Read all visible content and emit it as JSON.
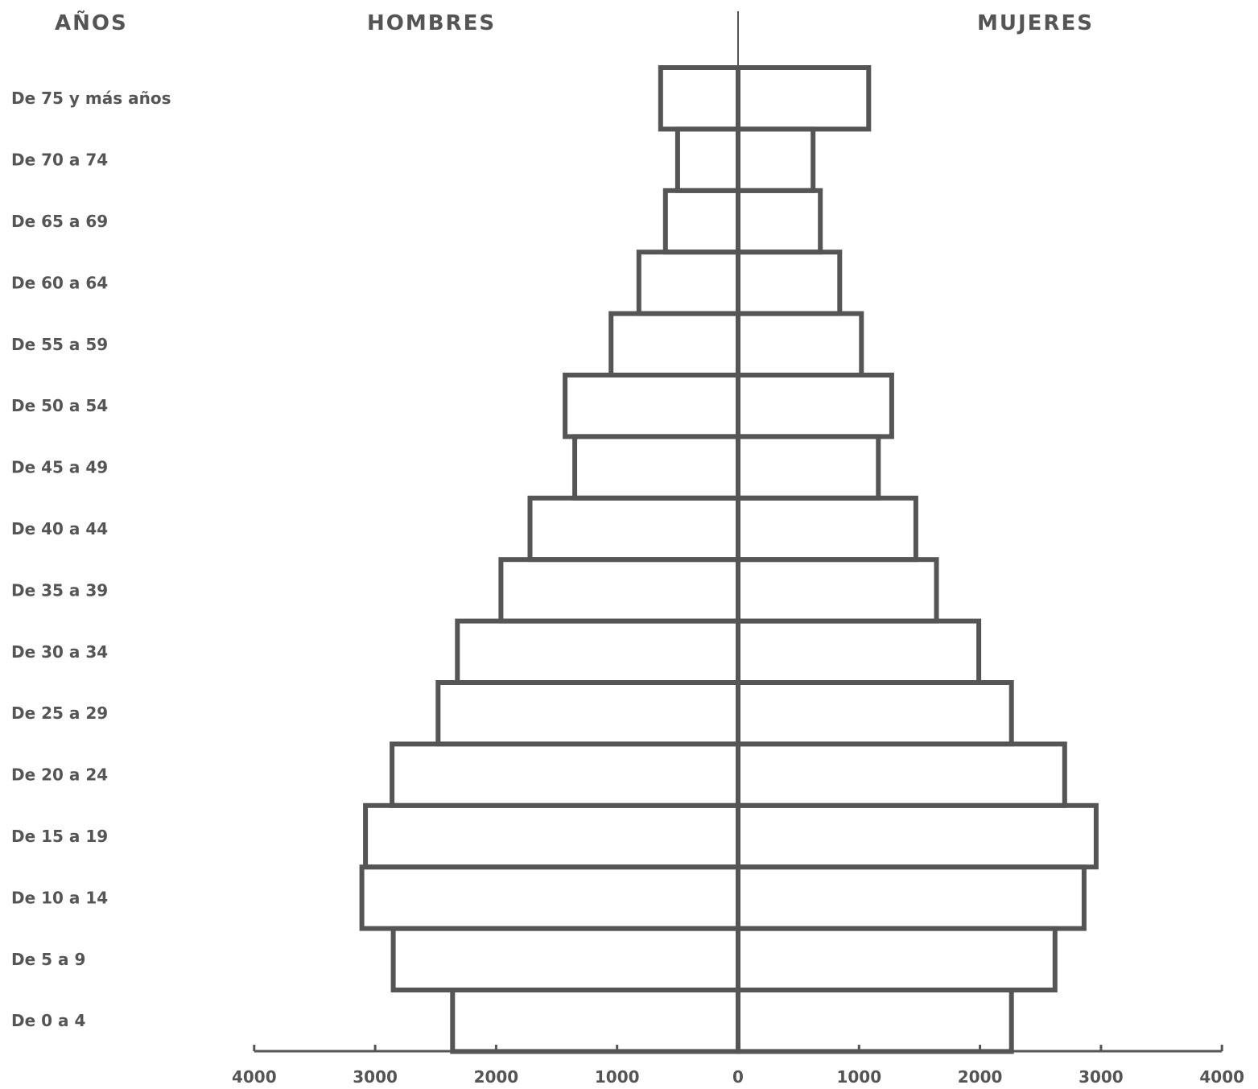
{
  "headers": {
    "age": "AÑOS",
    "men": "HOMBRES",
    "women": "MUJERES"
  },
  "colors": {
    "ink": "#555555",
    "background": "#ffffff"
  },
  "chart_data": {
    "type": "bar",
    "orientation": "horizontal",
    "subtype": "population-pyramid",
    "categories": [
      "De 75 y más años",
      "De 70 a 74",
      "De 65 a 69",
      "De 60 a 64",
      "De 55 a 59",
      "De 50 a 54",
      "De 45 a 49",
      "De 40 a 44",
      "De 35 a 39",
      "De 30 a 34",
      "De 25 a 29",
      "De 20 a 24",
      "De 15 a 19",
      "De 10 a 14",
      "De 5 a 9",
      "De 0 a 4"
    ],
    "series": [
      {
        "name": "HOMBRES",
        "side": "left",
        "values": [
          640,
          500,
          600,
          820,
          1050,
          1430,
          1350,
          1720,
          1960,
          2320,
          2480,
          2860,
          3080,
          3110,
          2850,
          2360
        ]
      },
      {
        "name": "MUJERES",
        "side": "right",
        "values": [
          1080,
          620,
          680,
          840,
          1020,
          1270,
          1160,
          1470,
          1640,
          1990,
          2260,
          2700,
          2960,
          2860,
          2620,
          2260
        ]
      }
    ],
    "x_ticks": [
      "4000",
      "3000",
      "2000",
      "1000",
      "0",
      "1000",
      "2000",
      "3000",
      "4000"
    ],
    "xlim": [
      -4000,
      4000
    ],
    "grid": false,
    "legend": "none"
  }
}
